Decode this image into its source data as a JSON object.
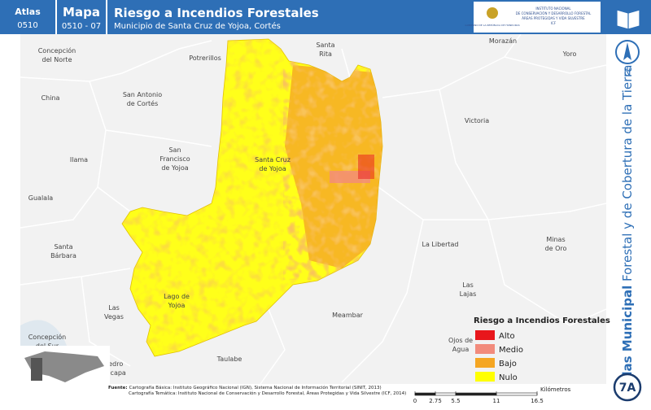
{
  "header": {
    "atlas_label": "Atlas",
    "atlas_code": "0510",
    "map_label": "Mapa",
    "map_code": "0510 - 07",
    "title": "Riesgo a Incendios Forestales",
    "subtitle": "Municipio de Santa Cruz de Yojoa, Cortés",
    "logo_left": "GOBIERNO DE LA REPÚBLICA DE HONDURAS",
    "logo_right": [
      "INSTITUTO NACIONAL",
      "DE CONSERVACIÓN Y DESARROLLO FORESTAL",
      "ÁREAS PROTEGIDAS Y VIDA SILVESTRE",
      "ICF"
    ]
  },
  "places": [
    [
      "Concepción",
      "del Norte"
    ],
    [
      "Potrerillos"
    ],
    [
      "Santa",
      "Rita"
    ],
    [
      "Morazán"
    ],
    [
      "Yoro"
    ],
    [
      "China"
    ],
    [
      "San Antonio",
      "de Cortés"
    ],
    [
      "Victoria"
    ],
    [
      "Ilama"
    ],
    [
      "San",
      "Francisco",
      "de Yojoa"
    ],
    [
      "Santa Cruz",
      "de Yojoa"
    ],
    [
      "Gualala"
    ],
    [
      "La Libertad"
    ],
    [
      "Minas",
      "de Oro"
    ],
    [
      "Santa",
      "Bárbara"
    ],
    [
      "Las",
      "Lajas"
    ],
    [
      "Lago de",
      "Yojoa"
    ],
    [
      "Las",
      "Vegas"
    ],
    [
      "Meambar"
    ],
    [
      "Concepción",
      "del Sur"
    ],
    [
      "Ojos de",
      "Agua"
    ],
    [
      "Taulabe"
    ],
    [
      "Pedro",
      "Zacapa"
    ]
  ],
  "legend": {
    "title": "Riesgo a Incendios Forestales",
    "items": [
      {
        "label": "Alto",
        "color": "#e8161b"
      },
      {
        "label": "Medio",
        "color": "#f28b7c"
      },
      {
        "label": "Bajo",
        "color": "#f5a623"
      },
      {
        "label": "Nulo",
        "color": "#ffff00"
      }
    ]
  },
  "scale": {
    "unit": "Kilómetros",
    "ticks": [
      0,
      2.75,
      5.5,
      11,
      16.5
    ]
  },
  "sources": {
    "lead": "Fuente:",
    "lines": [
      "Cartografía Básica: Instituto Geográfico Nacional (IGN), Sistema Nacional de Información Territorial (SINIT, 2013)",
      "Cartografía Temática: Instituto Nacional de Conservación y Desarrollo Forestal, Áreas Protegidas y Vida Silvestre (ICF, 2014)"
    ]
  },
  "sidebar": {
    "north": "N",
    "atlas_bold": "Atlas Municipal",
    "atlas_rest": " Forestal y de Cobertura de la Tierra",
    "sheet": "7A"
  }
}
